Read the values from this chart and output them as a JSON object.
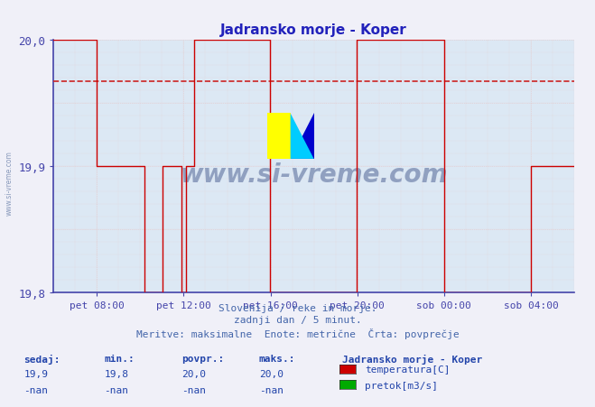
{
  "title": "Jadransko morje - Koper",
  "background_color": "#f0f0f8",
  "plot_bg_color": "#dce8f4",
  "grid_color_minor": "#e8c8c8",
  "grid_color_major": "#c8b0b0",
  "axis_color": "#4444aa",
  "title_color": "#2222bb",
  "label_color": "#2244aa",
  "ylim": [
    19.8,
    20.0
  ],
  "yticks": [
    19.8,
    19.9,
    20.0
  ],
  "ytick_labels": [
    "19,8",
    "19,9",
    "20,0"
  ],
  "xlabel_ticks": [
    "pet 08:00",
    "pet 12:00",
    "pet 16:00",
    "pet 20:00",
    "sob 00:00",
    "sob 04:00"
  ],
  "xlabel_tick_positions": [
    0.0833,
    0.25,
    0.4167,
    0.5833,
    0.75,
    0.9167
  ],
  "xlim": [
    0,
    1
  ],
  "avg_line_y": 19.967,
  "avg_line_color": "#cc2222",
  "avg_line_style": "--",
  "temp_line_color": "#cc0000",
  "watermark_text": "www.si-vreme.com",
  "watermark_color": "#8899bb",
  "footer_line1": "Slovenija / reke in morje.",
  "footer_line2": "zadnji dan / 5 minut.",
  "footer_line3": "Meritve: maksimalne  Enote: metrične  Črta: povprečje",
  "footer_color": "#4466aa",
  "legend_title": "Jadransko morje - Koper",
  "legend_items": [
    "temperatura[C]",
    "pretok[m3/s]"
  ],
  "legend_colors": [
    "#cc0000",
    "#00aa00"
  ],
  "stats_headers": [
    "sedaj:",
    "min.:",
    "povpr.:",
    "maks.:"
  ],
  "stats_temp": [
    "19,9",
    "19,8",
    "20,0",
    "20,0"
  ],
  "stats_pretok": [
    "-nan",
    "-nan",
    "-nan",
    "-nan"
  ],
  "line_x": [
    0.0,
    0.083,
    0.083,
    0.175,
    0.175,
    0.21,
    0.21,
    0.245,
    0.245,
    0.255,
    0.255,
    0.27,
    0.27,
    0.415,
    0.415,
    0.583,
    0.583,
    0.75,
    0.75,
    0.917,
    0.917,
    0.958,
    0.958,
    1.0
  ],
  "line_y": [
    20.0,
    20.0,
    19.9,
    19.9,
    19.8,
    19.8,
    19.9,
    19.9,
    19.8,
    19.8,
    19.9,
    19.9,
    20.0,
    20.0,
    19.8,
    19.8,
    20.0,
    20.0,
    19.8,
    19.8,
    19.9,
    19.9,
    19.9,
    19.9
  ]
}
